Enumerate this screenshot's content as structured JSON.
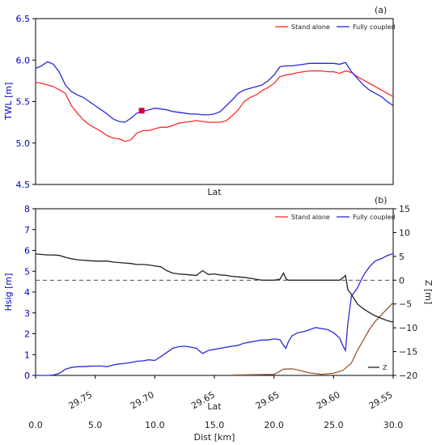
{
  "chart_data": [
    {
      "id": "a",
      "type": "line",
      "panel_label": "(a)",
      "xlabel": "Lat",
      "ylabel": "TWL [m]",
      "ylim": [
        4.5,
        6.5
      ],
      "yticks": [
        "4.5",
        "5.0",
        "5.5",
        "6.0",
        "6.5"
      ],
      "xlim": [
        0,
        30
      ],
      "legend_position": "top-right",
      "colors": {
        "stand_alone": "#ff2a2a",
        "fully_coupled": "#2a2ad8",
        "marker": "#d4003a"
      },
      "series": [
        {
          "name": "Stand alone",
          "x": [
            0,
            0.5,
            1,
            1.5,
            2,
            2.5,
            3,
            3.5,
            4,
            4.5,
            5,
            5.5,
            6,
            6.5,
            7,
            7.5,
            8,
            8.5,
            9,
            9.5,
            10,
            10.5,
            11,
            11.5,
            12,
            12.5,
            13,
            13.5,
            14,
            14.5,
            15,
            15.5,
            16,
            16.5,
            17,
            17.5,
            18,
            18.5,
            19,
            19.5,
            20,
            20.5,
            21,
            21.5,
            22,
            22.5,
            23,
            23.5,
            24,
            24.5,
            25,
            25.5,
            26,
            26.5,
            27,
            27.5,
            28,
            28.5,
            29,
            29.5,
            30
          ],
          "values": [
            5.73,
            5.72,
            5.7,
            5.68,
            5.64,
            5.6,
            5.45,
            5.36,
            5.28,
            5.22,
            5.18,
            5.14,
            5.09,
            5.06,
            5.05,
            5.02,
            5.04,
            5.12,
            5.15,
            5.15,
            5.17,
            5.19,
            5.19,
            5.21,
            5.24,
            5.25,
            5.26,
            5.27,
            5.26,
            5.25,
            5.25,
            5.25,
            5.27,
            5.33,
            5.4,
            5.5,
            5.55,
            5.58,
            5.63,
            5.67,
            5.72,
            5.8,
            5.82,
            5.83,
            5.85,
            5.86,
            5.87,
            5.87,
            5.87,
            5.86,
            5.86,
            5.84,
            5.87,
            5.85,
            5.8,
            5.76,
            5.72,
            5.68,
            5.64,
            5.6,
            5.56
          ]
        },
        {
          "name": "Fully coupled",
          "x": [
            0,
            0.5,
            1,
            1.5,
            2,
            2.5,
            3,
            3.5,
            4,
            4.5,
            5,
            5.5,
            6,
            6.5,
            7,
            7.5,
            8,
            8.5,
            9,
            9.5,
            10,
            10.5,
            11,
            11.5,
            12,
            12.5,
            13,
            13.5,
            14,
            14.5,
            15,
            15.5,
            16,
            16.5,
            17,
            17.5,
            18,
            18.5,
            19,
            19.5,
            20,
            20.5,
            21,
            21.5,
            22,
            22.5,
            23,
            23.5,
            24,
            24.5,
            25,
            25.5,
            26,
            26.5,
            27,
            27.5,
            28,
            28.5,
            29,
            29.5,
            30
          ],
          "values": [
            5.9,
            5.93,
            5.98,
            5.95,
            5.85,
            5.7,
            5.62,
            5.58,
            5.55,
            5.5,
            5.45,
            5.4,
            5.35,
            5.29,
            5.26,
            5.25,
            5.3,
            5.36,
            5.38,
            5.4,
            5.42,
            5.41,
            5.4,
            5.38,
            5.37,
            5.36,
            5.35,
            5.35,
            5.34,
            5.34,
            5.35,
            5.38,
            5.45,
            5.52,
            5.6,
            5.64,
            5.66,
            5.68,
            5.7,
            5.75,
            5.82,
            5.92,
            5.93,
            5.93,
            5.94,
            5.95,
            5.96,
            5.96,
            5.96,
            5.96,
            5.96,
            5.95,
            5.97,
            5.86,
            5.78,
            5.7,
            5.64,
            5.6,
            5.56,
            5.5,
            5.45
          ]
        }
      ],
      "marker": {
        "x": 8.9,
        "y": 5.39
      }
    },
    {
      "id": "b",
      "type": "line",
      "panel_label": "(b)",
      "xlabel": "Dist [km]",
      "xlabel_top": "Lat",
      "ylabel": "Hsig [m]",
      "ylabel_right": "Z [m]",
      "ylim": [
        0,
        8
      ],
      "yticks": [
        "0",
        "1",
        "2",
        "3",
        "4",
        "5",
        "6",
        "7",
        "8"
      ],
      "ylim_right": [
        -20,
        15
      ],
      "yticks_right": [
        "−20",
        "−15",
        "−10",
        "−5",
        "0",
        "5",
        "10",
        "15"
      ],
      "xlim": [
        0,
        30
      ],
      "xticks": [
        "0.0",
        "5.0",
        "10.0",
        "15.0",
        "20.0",
        "25.0",
        "30.0"
      ],
      "lat_ticks": [
        {
          "x": 4.8,
          "label": "29.75"
        },
        {
          "x": 10.0,
          "label": "29.70"
        },
        {
          "x": 15.1,
          "label": "29.65"
        },
        {
          "x": 20.5,
          "label": "29.65"
        },
        {
          "x": 25.6,
          "label": "29.60"
        },
        {
          "x": 30.0,
          "label": "29.55"
        }
      ],
      "legend_position": "top-right",
      "legend_z_position": "bottom-right",
      "colors": {
        "stand_alone": "#ff2a2a",
        "fully_coupled": "#2a2ad8",
        "z": "#222222",
        "brown": "#9a5a32"
      },
      "series": [
        {
          "name": "Stand alone",
          "x": [
            16.5,
            18,
            20,
            20.8,
            21.5,
            22,
            23,
            24,
            25,
            25.8,
            26.5,
            27,
            27.5,
            28,
            28.5,
            29,
            29.5,
            30
          ],
          "values": [
            0.02,
            0.03,
            0.05,
            0.3,
            0.32,
            0.26,
            0.12,
            0.05,
            0.1,
            0.25,
            0.6,
            1.2,
            1.7,
            2.2,
            2.6,
            2.9,
            3.2,
            3.5
          ]
        },
        {
          "name": "Fully coupled",
          "x": [
            0,
            0.5,
            1,
            1.5,
            2,
            2.5,
            3,
            3.5,
            4,
            4.5,
            5,
            5.5,
            6,
            6.5,
            7,
            7.5,
            8,
            8.5,
            9,
            9.5,
            10,
            10.5,
            11,
            11.5,
            12,
            12.5,
            13,
            13.5,
            14,
            14.5,
            15,
            15.5,
            16,
            16.5,
            17,
            17.5,
            18,
            18.5,
            19,
            19.5,
            20,
            20.5,
            20.8,
            21,
            21.2,
            21.5,
            22,
            22.5,
            23,
            23.5,
            24,
            24.5,
            25,
            25.5,
            25.8,
            26,
            26.2,
            26.5,
            27,
            27.5,
            28,
            28.5,
            29,
            29.5,
            30
          ],
          "values": [
            0,
            0,
            0,
            0.02,
            0.1,
            0.3,
            0.38,
            0.42,
            0.42,
            0.44,
            0.45,
            0.45,
            0.42,
            0.5,
            0.55,
            0.58,
            0.62,
            0.68,
            0.7,
            0.75,
            0.72,
            0.9,
            1.1,
            1.3,
            1.38,
            1.4,
            1.36,
            1.3,
            1.05,
            1.2,
            1.25,
            1.3,
            1.35,
            1.4,
            1.45,
            1.55,
            1.6,
            1.65,
            1.7,
            1.7,
            1.75,
            1.72,
            1.45,
            1.3,
            1.6,
            1.9,
            2.05,
            2.1,
            2.2,
            2.3,
            2.25,
            2.2,
            2.05,
            1.8,
            1.4,
            1.2,
            2.5,
            3.8,
            4.2,
            4.8,
            5.2,
            5.5,
            5.6,
            5.75,
            5.85
          ]
        },
        {
          "name": "Z",
          "axis": "right",
          "x": [
            0,
            0.5,
            1,
            1.5,
            2,
            2.5,
            3,
            3.5,
            4,
            4.5,
            5,
            5.5,
            6,
            6.5,
            7,
            7.5,
            8,
            8.5,
            9,
            9.5,
            10,
            10.5,
            11,
            11.5,
            12,
            12.5,
            13,
            13.5,
            14,
            14.5,
            15,
            15.5,
            16,
            16.5,
            17,
            17.5,
            18,
            18.5,
            19,
            19.5,
            20,
            20.5,
            20.8,
            21,
            21.2,
            21.5,
            22,
            22.5,
            23,
            23.5,
            24,
            24.5,
            25,
            25.5,
            25.8,
            26,
            26.2,
            26.5,
            27,
            27.5,
            28,
            28.5,
            29,
            29.5,
            30
          ],
          "values": [
            5.5,
            5.4,
            5.3,
            5.3,
            5.2,
            4.8,
            4.5,
            4.3,
            4.2,
            4.1,
            4.0,
            4.0,
            4.0,
            3.8,
            3.7,
            3.6,
            3.5,
            3.3,
            3.3,
            3.2,
            3.0,
            2.8,
            2.0,
            1.5,
            1.3,
            1.2,
            1.1,
            1.0,
            2.0,
            1.2,
            1.3,
            1.1,
            1.0,
            0.8,
            0.7,
            0.6,
            0.4,
            0.2,
            0.0,
            0.0,
            0.0,
            0.2,
            1.5,
            0.3,
            0.0,
            0.0,
            0.0,
            0.0,
            0.0,
            0.0,
            0.0,
            0.0,
            0.0,
            0.0,
            0.5,
            1.0,
            -2.0,
            -3.0,
            -5.0,
            -6.0,
            -6.8,
            -7.5,
            -8.0,
            -8.5,
            -8.8
          ]
        },
        {
          "name": "dashed-zero",
          "axis": "right",
          "x": [
            0,
            30
          ],
          "values": [
            0,
            0
          ]
        }
      ],
      "legend_entries": [
        "Stand alone",
        "Fully coupled",
        "Z"
      ]
    }
  ]
}
